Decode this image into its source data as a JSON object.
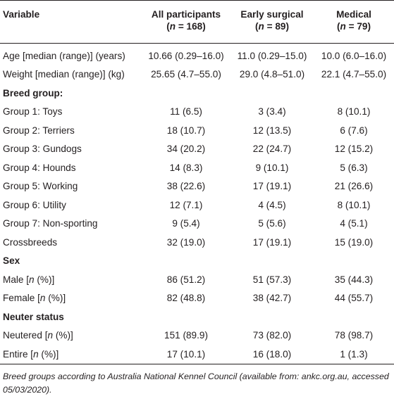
{
  "header": {
    "variable": "Variable",
    "columns": [
      {
        "title": "All participants",
        "n_label": "(n = 168)"
      },
      {
        "title": "Early surgical",
        "n_label": "(n = 89)"
      },
      {
        "title": "Medical",
        "n_label": "(n = 79)"
      }
    ]
  },
  "rows": {
    "age": {
      "label": "Age [median (range)] (years)",
      "all": "10.66 (0.29–16.0)",
      "early": "11.0 (0.29–15.0)",
      "medical": "10.0 (6.0–16.0)"
    },
    "weight": {
      "label": "Weight [median (range)] (kg)",
      "all": "25.65 (4.7–55.0)",
      "early": "29.0 (4.8–51.0)",
      "medical": "22.1 (4.7–55.0)"
    }
  },
  "breed": {
    "heading": "Breed group:",
    "items": [
      {
        "label": "Group 1: Toys",
        "all": "11 (6.5)",
        "early": "3 (3.4)",
        "medical": "8 (10.1)"
      },
      {
        "label": "Group 2: Terriers",
        "all": "18 (10.7)",
        "early": "12 (13.5)",
        "medical": "6 (7.6)"
      },
      {
        "label": "Group 3: Gundogs",
        "all": "34 (20.2)",
        "early": "22 (24.7)",
        "medical": "12 (15.2)"
      },
      {
        "label": "Group 4: Hounds",
        "all": "14 (8.3)",
        "early": "9 (10.1)",
        "medical": "5 (6.3)"
      },
      {
        "label": "Group 5: Working",
        "all": "38 (22.6)",
        "early": "17 (19.1)",
        "medical": "21 (26.6)"
      },
      {
        "label": "Group 6: Utility",
        "all": "12 (7.1)",
        "early": "4 (4.5)",
        "medical": "8 (10.1)"
      },
      {
        "label": "Group 7: Non-sporting",
        "all": "9 (5.4)",
        "early": "5 (5.6)",
        "medical": "4 (5.1)"
      },
      {
        "label": "Crossbreeds",
        "all": "32 (19.0)",
        "early": "17 (19.1)",
        "medical": "15 (19.0)"
      }
    ]
  },
  "sex": {
    "heading": "Sex",
    "items": [
      {
        "label_pre": "Male [",
        "label_ital": "n",
        "label_post": " (%)]",
        "all": "86 (51.2)",
        "early": "51 (57.3)",
        "medical": "35 (44.3)"
      },
      {
        "label_pre": "Female [",
        "label_ital": "n",
        "label_post": " (%)]",
        "all": "82 (48.8)",
        "early": "38 (42.7)",
        "medical": "44 (55.7)"
      }
    ]
  },
  "neuter": {
    "heading": "Neuter status",
    "items": [
      {
        "label_pre": "Neutered [",
        "label_ital": "n",
        "label_post": " (%)]",
        "all": "151 (89.9)",
        "early": "73 (82.0)",
        "medical": "78 (98.7)"
      },
      {
        "label_pre": "Entire [",
        "label_ital": "n",
        "label_post": " (%)]",
        "all": "17 (10.1)",
        "early": "16 (18.0)",
        "medical": "1 (1.3)"
      }
    ]
  },
  "footnote": "Breed groups according to Australia National Kennel Council (available from: ankc.org.au, accessed 05/03/2020)."
}
